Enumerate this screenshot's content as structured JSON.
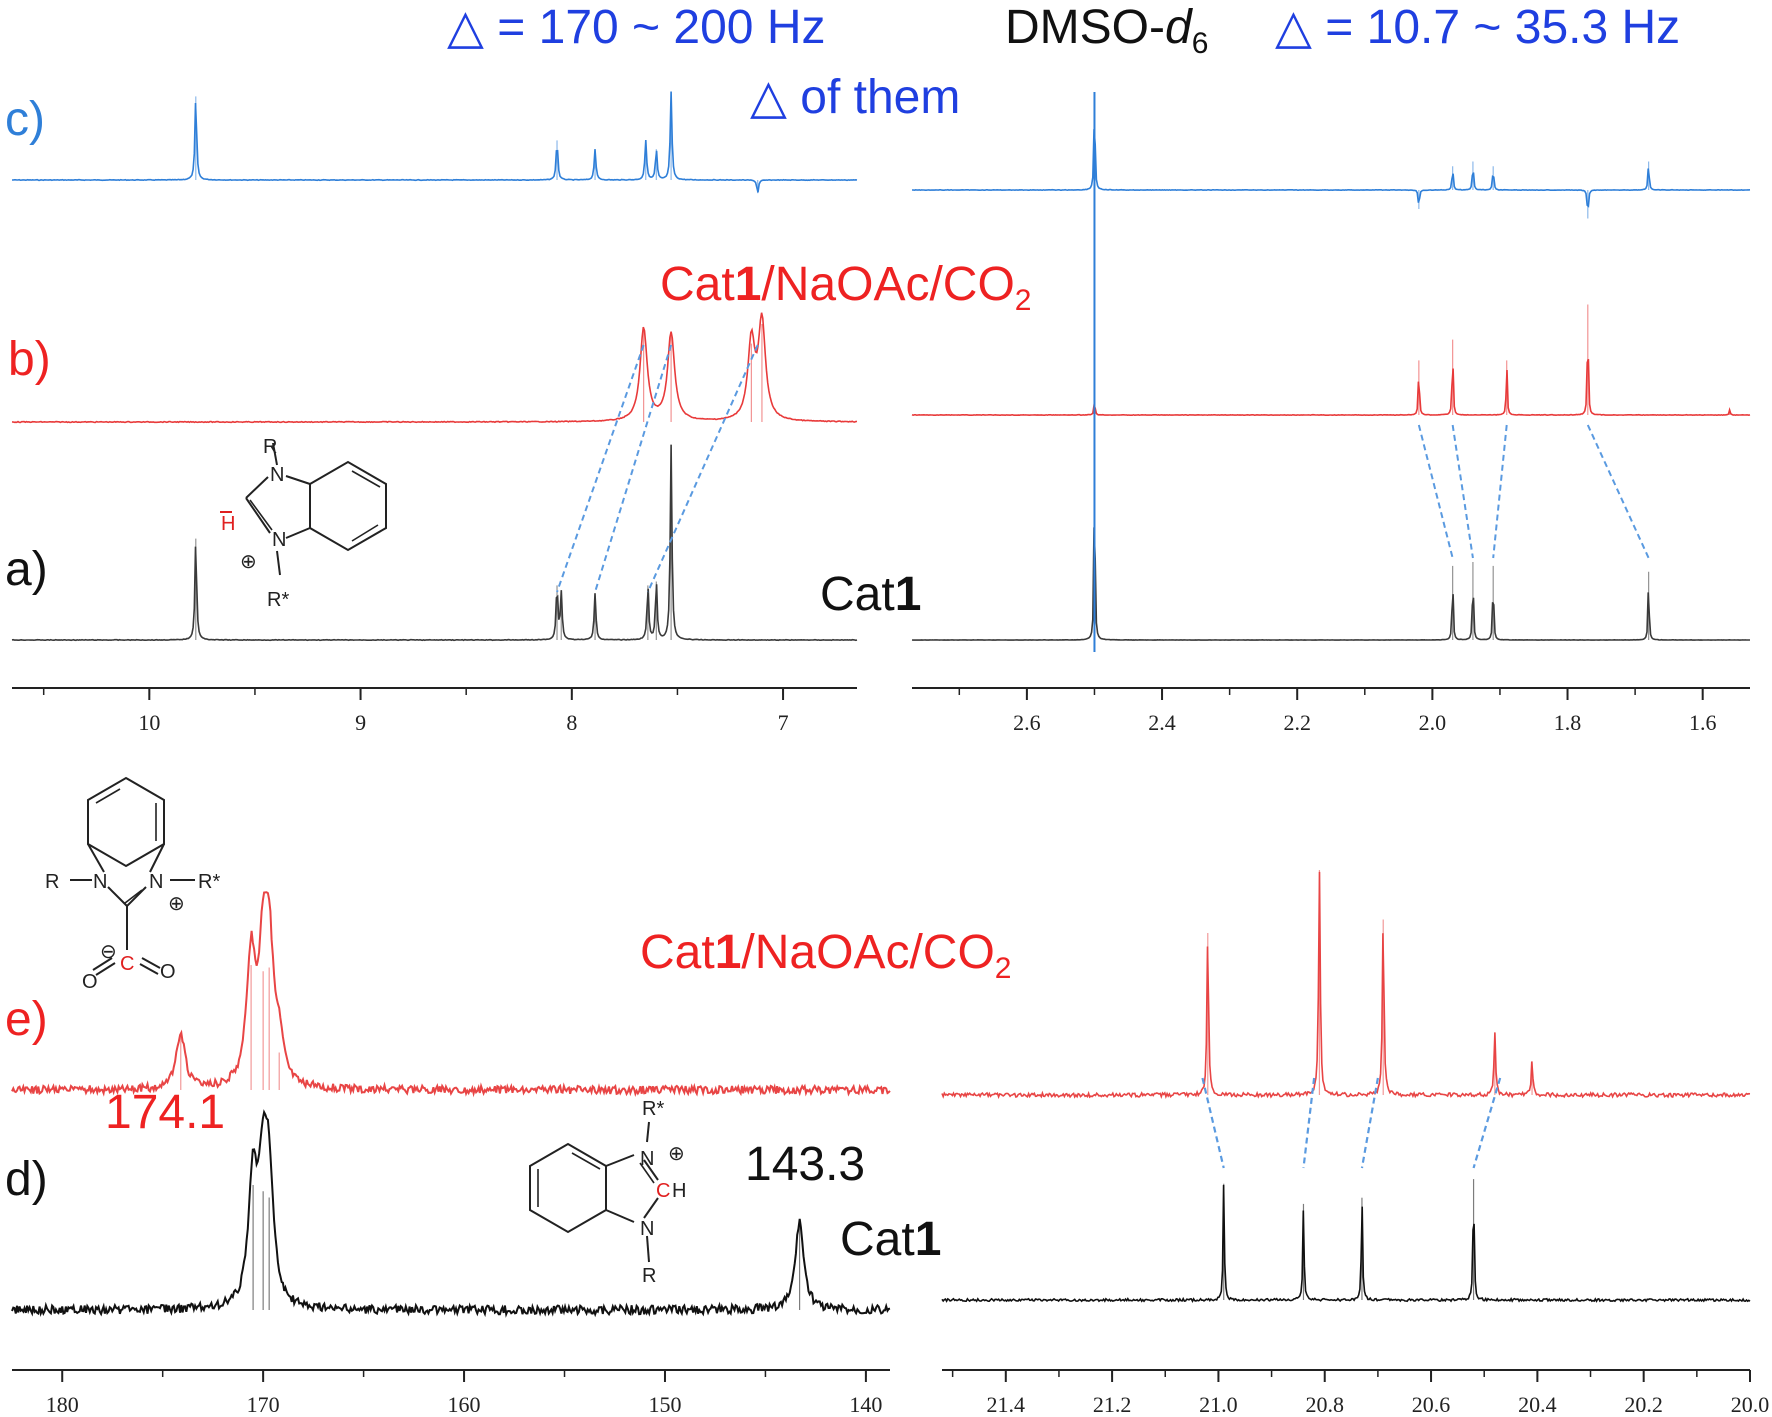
{
  "header": {
    "delta_left": "△ = 170 ~ 200 Hz",
    "solvent": "DMSO-",
    "solvent_sub": "d",
    "solvent_subnum": "6",
    "delta_right": "△ = 10.7 ~ 35.3 Hz",
    "delta_of_them": "△ of them"
  },
  "labels": {
    "a": "a)",
    "b": "b)",
    "c": "c)",
    "d": "d)",
    "e": "e)",
    "cat1_a_prefix": "Cat",
    "cat1_a_bold": "1",
    "cat1_d_prefix": "Cat",
    "cat1_d_bold": "1",
    "mix_b_prefix": "Cat",
    "mix_b_bold": "1",
    "mix_b_rest": "/NaOAc/CO",
    "mix_b_sub": "2",
    "mix_e_prefix": "Cat",
    "mix_e_bold": "1",
    "mix_e_rest": "/NaOAc/CO",
    "mix_e_sub": "2",
    "shift_174": "174.1",
    "shift_143": "143.3"
  },
  "molecules": {
    "top": {
      "R": "R",
      "Rstar": "R*",
      "H": "H",
      "N1": "N",
      "N2": "N",
      "plus": "⊕"
    },
    "mid": {
      "R": "R",
      "Rstar": "R*",
      "N1": "N",
      "N2": "N",
      "plus": "⊕",
      "minus": "⊖",
      "C": "C",
      "O1": "O",
      "O2": "O"
    },
    "bot": {
      "R": "R",
      "Rstar": "R*",
      "N1": "N",
      "N2": "N",
      "plus": "⊕",
      "C": "C",
      "H": "H"
    }
  },
  "colors": {
    "c_trace": "#2f7fd8",
    "b_trace": "#e83a3a",
    "a_trace": "#3a3a3a",
    "d_trace": "#111111",
    "e_trace": "#e84545",
    "header_blue": "#1f3fe0",
    "label_red": "#ee2222",
    "connector": "#5a9ae0"
  },
  "chart_data": [
    {
      "type": "line",
      "name": "1H aromatic region",
      "xlabel": "",
      "ylabel": "",
      "xlim": [
        10.65,
        6.65
      ],
      "x_ticks": [
        10,
        9,
        8,
        7
      ],
      "series": [
        {
          "name": "c)",
          "peaks": [
            {
              "x": 9.78,
              "h": 0.95
            },
            {
              "x": 8.07,
              "h": 0.45
            },
            {
              "x": 7.89,
              "h": 0.35
            },
            {
              "x": 7.65,
              "h": 0.45
            },
            {
              "x": 7.6,
              "h": 0.35
            },
            {
              "x": 7.53,
              "h": 1.0
            },
            {
              "x": 7.12,
              "h": -0.15
            }
          ]
        },
        {
          "name": "b)",
          "peaks": [
            {
              "x": 7.66,
              "h": 0.95
            },
            {
              "x": 7.53,
              "h": 0.9
            },
            {
              "x": 7.15,
              "h": 0.8
            },
            {
              "x": 7.1,
              "h": 1.0
            }
          ]
        },
        {
          "name": "a)",
          "peaks": [
            {
              "x": 9.78,
              "h": 0.52
            },
            {
              "x": 8.07,
              "h": 0.28
            },
            {
              "x": 8.05,
              "h": 0.24
            },
            {
              "x": 7.89,
              "h": 0.24
            },
            {
              "x": 7.64,
              "h": 0.28
            },
            {
              "x": 7.6,
              "h": 0.3
            },
            {
              "x": 7.53,
              "h": 1.0
            }
          ]
        }
      ]
    },
    {
      "type": "line",
      "name": "1H aliphatic region",
      "xlabel": "",
      "ylabel": "",
      "xlim": [
        2.77,
        1.53
      ],
      "x_ticks": [
        2.6,
        2.4,
        2.2,
        2.0,
        1.8,
        1.6
      ],
      "series": [
        {
          "name": "c)",
          "peaks": [
            {
              "x": 2.5,
              "h": 1.0
            },
            {
              "x": 2.02,
              "h": -0.2
            },
            {
              "x": 1.97,
              "h": 0.25
            },
            {
              "x": 1.94,
              "h": 0.3
            },
            {
              "x": 1.91,
              "h": 0.25
            },
            {
              "x": 1.77,
              "h": -0.3
            },
            {
              "x": 1.68,
              "h": 0.3
            }
          ]
        },
        {
          "name": "b)",
          "peaks": [
            {
              "x": 2.5,
              "h": 0.13
            },
            {
              "x": 2.02,
              "h": 0.42
            },
            {
              "x": 1.97,
              "h": 0.58
            },
            {
              "x": 1.89,
              "h": 0.42
            },
            {
              "x": 1.77,
              "h": 0.85
            },
            {
              "x": 1.56,
              "h": 0.04
            }
          ]
        },
        {
          "name": "a)",
          "peaks": [
            {
              "x": 2.5,
              "h": 1.0
            },
            {
              "x": 1.97,
              "h": 0.38
            },
            {
              "x": 1.94,
              "h": 0.4
            },
            {
              "x": 1.91,
              "h": 0.38
            },
            {
              "x": 1.68,
              "h": 0.35
            }
          ]
        }
      ]
    },
    {
      "type": "line",
      "name": "13C carbonyl region",
      "xlabel": "",
      "ylabel": "",
      "xlim": [
        182.5,
        138.8
      ],
      "x_ticks": [
        180,
        170,
        160,
        150,
        140
      ],
      "series": [
        {
          "name": "e)",
          "peaks": [
            {
              "x": 174.1,
              "h": 0.45
            },
            {
              "x": 170.6,
              "h": 1.0
            },
            {
              "x": 170.0,
              "h": 0.95
            },
            {
              "x": 169.7,
              "h": 0.98
            },
            {
              "x": 169.2,
              "h": 0.3
            }
          ]
        },
        {
          "name": "d)",
          "peaks": [
            {
              "x": 170.5,
              "h": 1.0
            },
            {
              "x": 170.0,
              "h": 0.95
            },
            {
              "x": 169.7,
              "h": 0.9
            },
            {
              "x": 143.3,
              "h": 0.7
            }
          ]
        }
      ]
    },
    {
      "type": "line",
      "name": "13C aliphatic region",
      "xlabel": "",
      "ylabel": "",
      "xlim": [
        21.52,
        20.0
      ],
      "x_ticks": [
        21.4,
        21.2,
        21.0,
        20.8,
        20.6,
        20.4,
        20.2,
        20.0
      ],
      "series": [
        {
          "name": "e)",
          "peaks": [
            {
              "x": 21.02,
              "h": 0.72
            },
            {
              "x": 20.81,
              "h": 1.0
            },
            {
              "x": 20.69,
              "h": 0.78
            },
            {
              "x": 20.48,
              "h": 0.28
            },
            {
              "x": 20.41,
              "h": 0.15
            }
          ]
        },
        {
          "name": "d)",
          "peaks": [
            {
              "x": 20.99,
              "h": 0.75
            },
            {
              "x": 20.84,
              "h": 0.62
            },
            {
              "x": 20.73,
              "h": 0.66
            },
            {
              "x": 20.52,
              "h": 0.78
            }
          ]
        }
      ]
    }
  ]
}
